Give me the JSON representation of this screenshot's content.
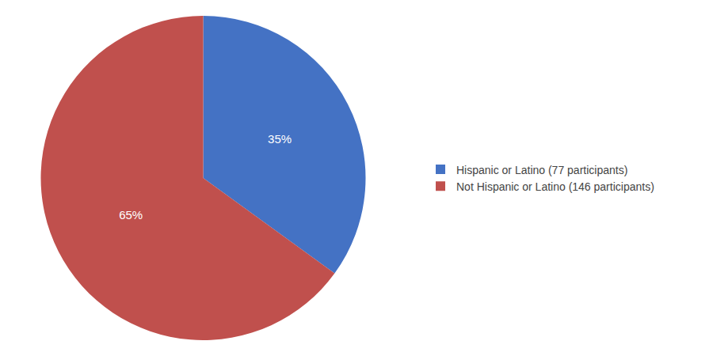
{
  "chart_data": {
    "type": "pie",
    "categories": [
      "Hispanic or Latino (77 participants)",
      "Not Hispanic or Latino (146 participants)"
    ],
    "values": [
      35,
      65
    ],
    "value_labels": [
      "35%",
      "65%"
    ],
    "colors": [
      "#4472C4",
      "#C0504D"
    ],
    "data_labels": true,
    "legend": "right"
  }
}
